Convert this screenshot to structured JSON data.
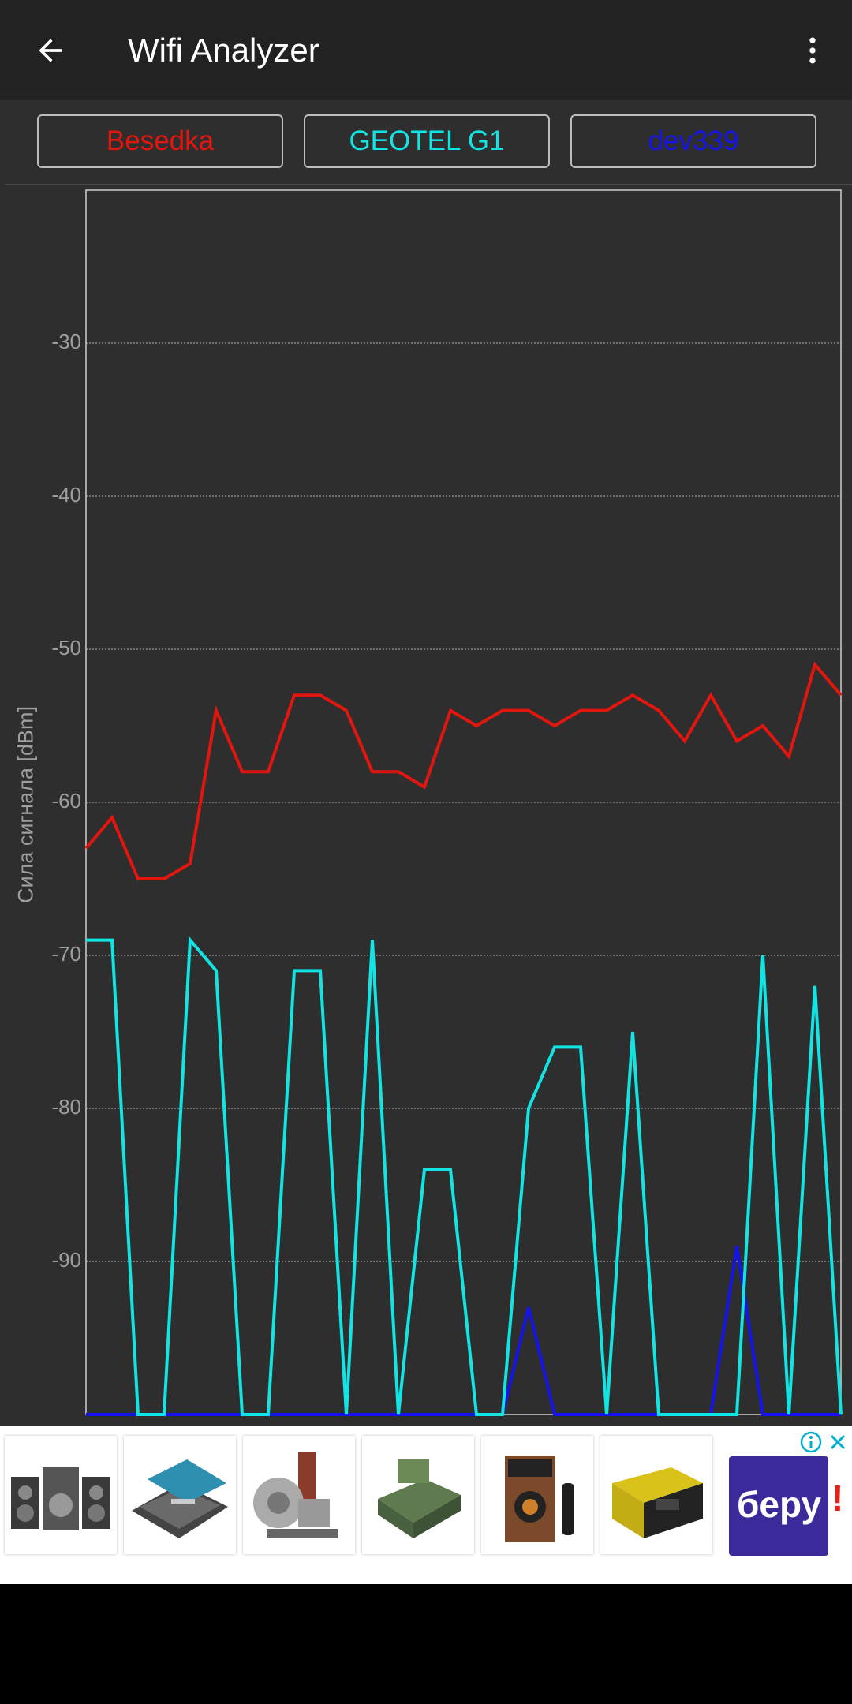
{
  "app": {
    "title": "Wifi Analyzer"
  },
  "icons": {
    "back": "arrow-back-icon",
    "menu": "more-vert-icon",
    "ad_info": "adchoices-icon",
    "ad_close": "close-icon"
  },
  "ssid_buttons": [
    {
      "label": "Besedka",
      "color": "#e0160f"
    },
    {
      "label": "GEOTEL G1",
      "color": "#12e3e3"
    },
    {
      "label": "dev339",
      "color": "#1414e8"
    }
  ],
  "chart_data": {
    "type": "line",
    "ylabel": "Сила сигнала [dBm]",
    "xlabel": "",
    "ylim": [
      -100,
      -20
    ],
    "yticks": [
      -30,
      -40,
      -50,
      -60,
      -70,
      -80,
      -90
    ],
    "grid": true,
    "x": [
      0,
      1,
      2,
      3,
      4,
      5,
      6,
      7,
      8,
      9,
      10,
      11,
      12,
      13,
      14,
      15,
      16,
      17,
      18,
      19,
      20,
      21,
      22,
      23,
      24,
      25,
      26,
      27,
      28,
      29
    ],
    "series": [
      {
        "name": "Besedka",
        "color": "#e0160f",
        "values": [
          -63,
          -61,
          -65,
          -65,
          -64,
          -54,
          -58,
          -58,
          -53,
          -53,
          -54,
          -58,
          -58,
          -59,
          -54,
          -55,
          -54,
          -54,
          -55,
          -54,
          -54,
          -53,
          -54,
          -56,
          -53,
          -56,
          -55,
          -57,
          -51,
          -53
        ]
      },
      {
        "name": "GEOTEL G1",
        "color": "#12e3e3",
        "values": [
          -69,
          -69,
          -100,
          -100,
          -69,
          -71,
          -100,
          -100,
          -71,
          -71,
          -100,
          -69,
          -100,
          -84,
          -84,
          -100,
          -100,
          -80,
          -76,
          -76,
          -100,
          -75,
          -100,
          -100,
          -100,
          -100,
          -70,
          -100,
          -72,
          -100
        ]
      },
      {
        "name": "dev339",
        "color": "#1414e8",
        "values": [
          -100,
          -100,
          -100,
          -100,
          -100,
          -100,
          -100,
          -100,
          -100,
          -100,
          -100,
          -100,
          -100,
          -100,
          -100,
          -100,
          -100,
          -93,
          -100,
          -100,
          -100,
          -100,
          -100,
          -100,
          -100,
          -89,
          -100,
          -100,
          -100,
          -100
        ]
      }
    ]
  },
  "ad": {
    "brand": "беру",
    "brand_mark": "!",
    "brand_color": "#3a2a9a",
    "products": [
      "speaker-system",
      "tool-kit",
      "belt-grinder",
      "sharpener",
      "portable-speaker",
      "welding-machine"
    ]
  }
}
